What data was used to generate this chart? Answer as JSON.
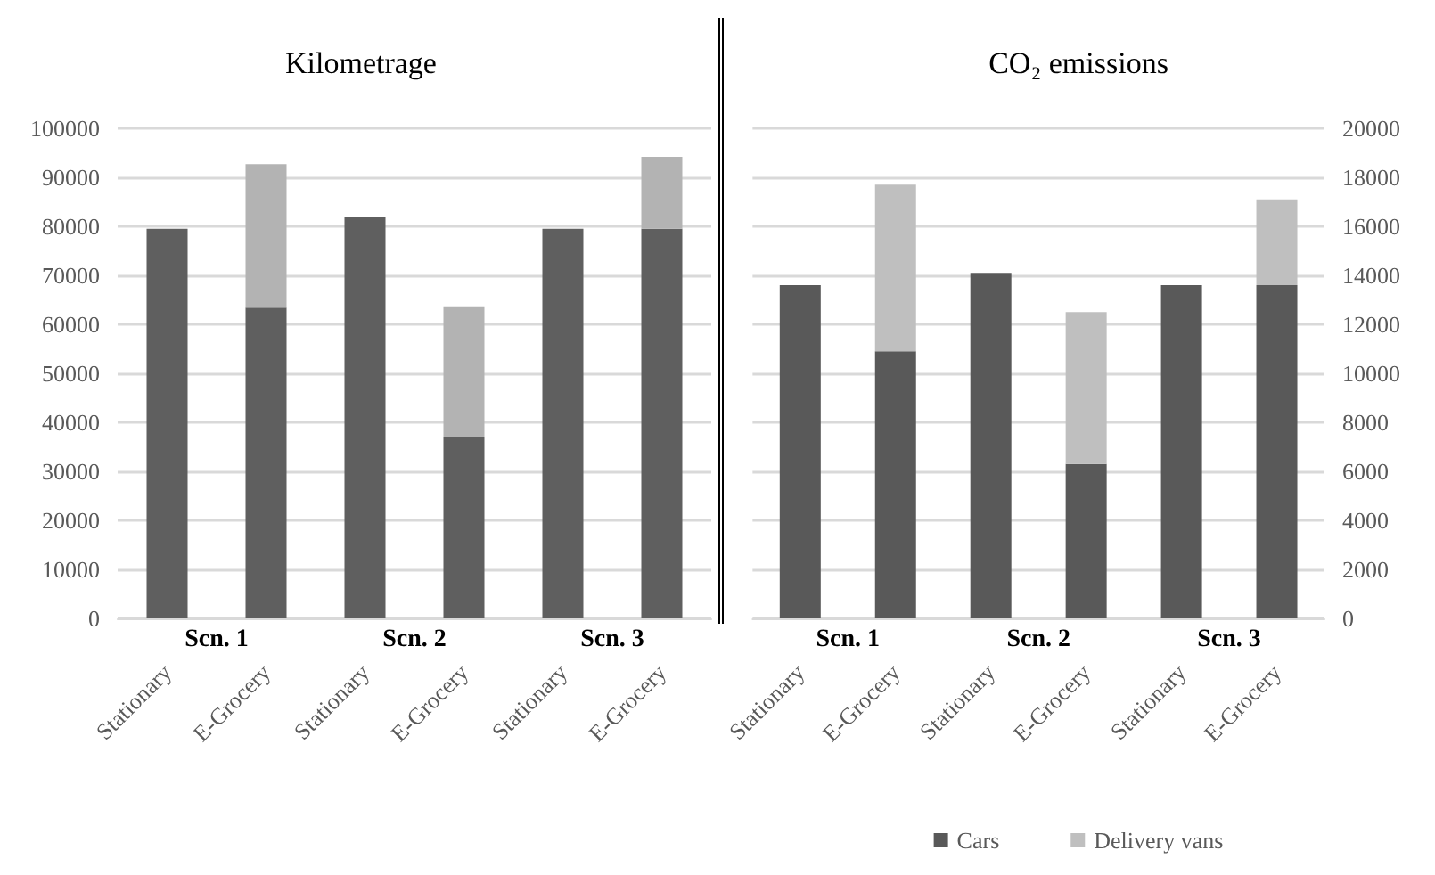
{
  "chart_data": [
    {
      "type": "bar",
      "title": "Kilometrage",
      "stacked": true,
      "categories": [
        "Stationary",
        "E-Grocery",
        "Stationary",
        "E-Grocery",
        "Stationary",
        "E-Grocery"
      ],
      "series": [
        {
          "color": "#5f5f5f",
          "values": [
            79500,
            63400,
            81900,
            37000,
            79500,
            79500
          ]
        },
        {
          "color": "#b3b3b3",
          "values": [
            0,
            29300,
            0,
            26700,
            0,
            14700
          ]
        }
      ],
      "annotations": [
        "Scn. 1",
        "Scn. 2",
        "Scn. 3"
      ],
      "ylim": [
        0,
        100000
      ],
      "yticks": [
        0,
        10000,
        20000,
        30000,
        40000,
        50000,
        60000,
        70000,
        80000,
        90000,
        100000
      ],
      "grid": "y",
      "legend": false
    },
    {
      "type": "bar",
      "title": "CO₂ emissions",
      "stacked": true,
      "categories": [
        "Stationary",
        "E-Grocery",
        "Stationary",
        "E-Grocery",
        "Stationary",
        "E-Grocery"
      ],
      "series": [
        {
          "name": "Cars",
          "color": "#595959",
          "axis": "y2",
          "values": [
            13600,
            10900,
            14100,
            6300,
            13600,
            13600
          ]
        },
        {
          "name": "Delivery vans",
          "color": "#bfbfbf",
          "axis": "y2",
          "values": [
            0,
            6800,
            0,
            6200,
            0,
            3500
          ]
        }
      ],
      "annotations": [
        "Scn. 1",
        "Scn. 2",
        "Scn. 3"
      ],
      "y2lim": [
        0,
        20000
      ],
      "y2ticks": [
        0,
        2000,
        4000,
        6000,
        8000,
        10000,
        12000,
        14000,
        16000,
        18000,
        20000
      ],
      "grid": "y",
      "legend": "bottom"
    }
  ]
}
